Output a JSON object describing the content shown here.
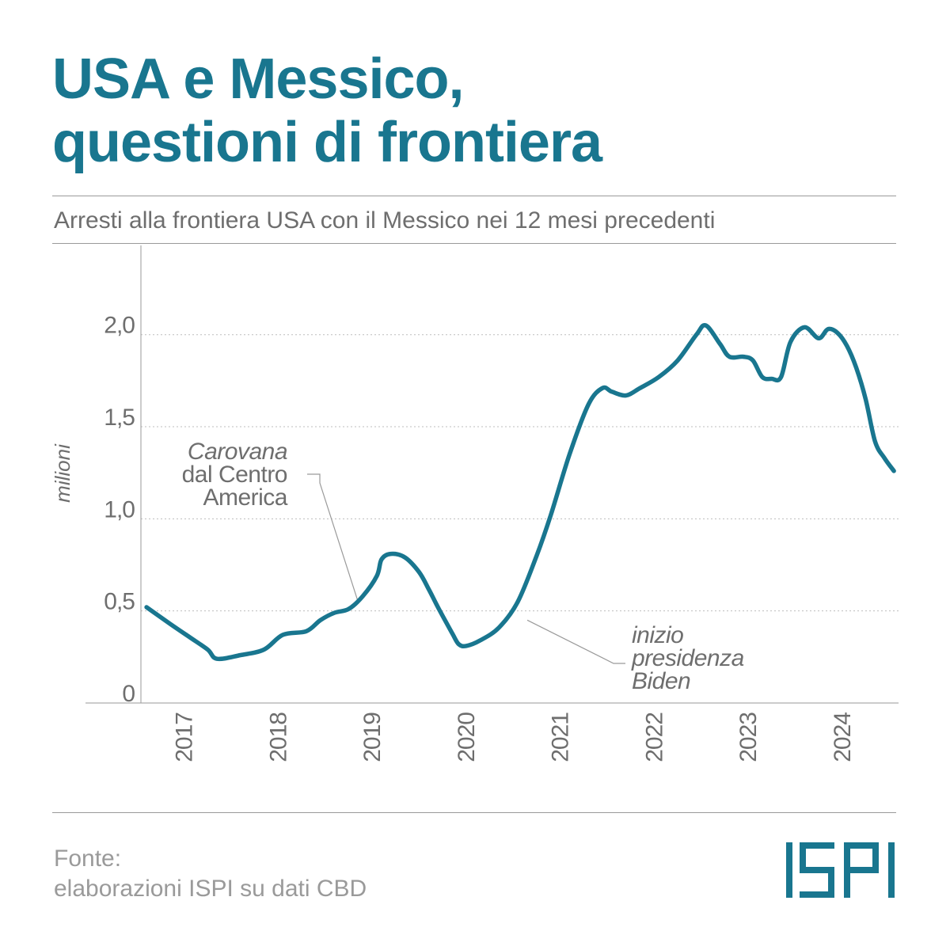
{
  "header": {
    "title_line1": "USA e Messico,",
    "title_line2": "questioni di frontiera",
    "subtitle": "Arresti alla frontiera USA con il Messico nei 12 mesi precedenti"
  },
  "footer": {
    "source_label": "Fonte:",
    "source_text": "elaborazioni ISPI su dati CBD"
  },
  "logo": {
    "text": "ISPI",
    "color": "#19768f"
  },
  "colors": {
    "title": "#19768f",
    "line": "#19768f",
    "text": "#6e6e6e",
    "grid": "#bdbdbd"
  },
  "chart_data": {
    "type": "line",
    "ylabel": "milioni",
    "ylim": [
      0,
      2.45
    ],
    "y_ticks": [
      {
        "value": 0,
        "label": "0"
      },
      {
        "value": 0.5,
        "label": "0,5"
      },
      {
        "value": 1.0,
        "label": "1,0"
      },
      {
        "value": 1.5,
        "label": "1,5"
      },
      {
        "value": 2.0,
        "label": "2,0"
      }
    ],
    "x_tick_labels": [
      "2017",
      "2018",
      "2019",
      "2020",
      "2021",
      "2022",
      "2023",
      "2024"
    ],
    "x_tick_values": [
      2017.0,
      2018.0,
      2019.0,
      2020.0,
      2021.0,
      2022.0,
      2023.0,
      2024.0
    ],
    "xlim": [
      2016.54,
      2024.6
    ],
    "grid": "horizontal dotted",
    "series": [
      {
        "x": [
          2016.6,
          2016.85,
          2017.05,
          2017.25,
          2017.35,
          2017.6,
          2017.85,
          2018.05,
          2018.3,
          2018.45,
          2018.6,
          2018.75,
          2018.9,
          2019.05,
          2019.1,
          2019.2,
          2019.35,
          2019.5,
          2019.6,
          2019.7,
          2019.85,
          2019.92,
          2020.0,
          2020.15,
          2020.35,
          2020.55,
          2020.75,
          2020.9,
          2021.1,
          2021.3,
          2021.45,
          2021.55,
          2021.7,
          2021.85,
          2022.05,
          2022.25,
          2022.45,
          2022.55,
          2022.7,
          2022.8,
          2022.95,
          2023.05,
          2023.15,
          2023.25,
          2023.35,
          2023.45,
          2023.6,
          2023.75,
          2023.85,
          2023.95,
          2024.05,
          2024.15,
          2024.25,
          2024.35,
          2024.45,
          2024.55
        ],
        "y": [
          0.52,
          0.43,
          0.36,
          0.29,
          0.24,
          0.26,
          0.29,
          0.37,
          0.39,
          0.45,
          0.49,
          0.51,
          0.58,
          0.69,
          0.78,
          0.81,
          0.79,
          0.71,
          0.62,
          0.52,
          0.38,
          0.32,
          0.31,
          0.34,
          0.41,
          0.55,
          0.8,
          1.02,
          1.35,
          1.62,
          1.71,
          1.69,
          1.67,
          1.71,
          1.77,
          1.86,
          2.0,
          2.05,
          1.95,
          1.88,
          1.88,
          1.86,
          1.77,
          1.76,
          1.77,
          1.96,
          2.04,
          1.98,
          2.03,
          2.01,
          1.94,
          1.82,
          1.65,
          1.42,
          1.33,
          1.26
        ]
      }
    ],
    "annotations": [
      {
        "lines": [
          "Carovana",
          "dal Centro",
          "America"
        ],
        "italic_lines": [
          0
        ],
        "x": 2018.85,
        "y": 0.55
      },
      {
        "lines": [
          "inizio",
          "presidenza",
          "Biden"
        ],
        "italic_lines": [
          0,
          1,
          2
        ],
        "x": 2020.65,
        "y": 0.45
      }
    ]
  }
}
